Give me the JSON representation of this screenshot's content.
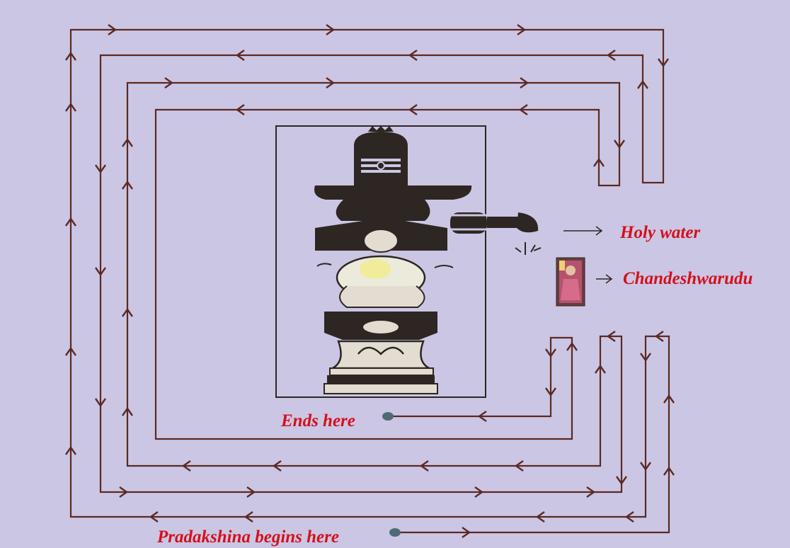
{
  "colors": {
    "background": "#cbc6e4",
    "path": "#5b2a22",
    "label": "#d4101a",
    "marker": "#4f6a76",
    "ink": "#2e2622"
  },
  "labels": {
    "holy_water": "Holy water",
    "chandeshwarudu": "Chandeshwarudu",
    "ends_here": "Ends here",
    "begins_here": "Pradakshina begins here"
  },
  "icons": {
    "lingam": "shiva-lingam-illustration",
    "nandi": "nandi-bull-illustration",
    "deity": "chandeshwara-deity-picture",
    "start": "start-dot",
    "end": "end-dot"
  }
}
